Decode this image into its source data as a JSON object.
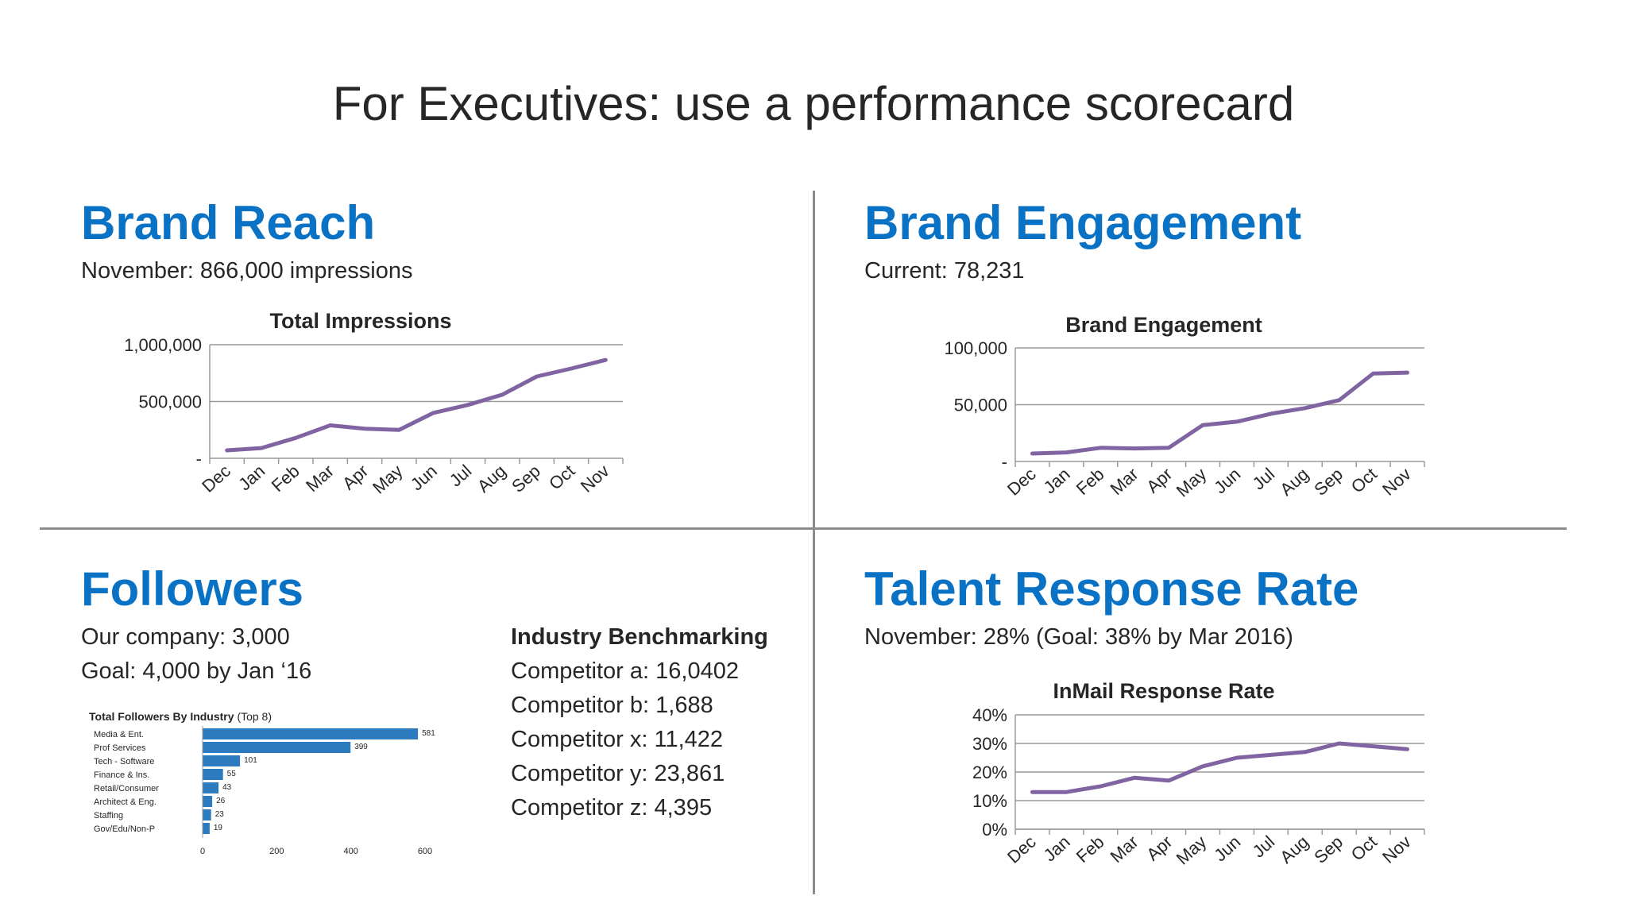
{
  "slide": {
    "title": "For Executives: use a performance scorecard"
  },
  "brand_reach": {
    "heading": "Brand Reach",
    "subtitle": "November: 866,000 impressions"
  },
  "brand_engagement": {
    "heading": "Brand Engagement",
    "subtitle": "Current: 78,231"
  },
  "followers": {
    "heading": "Followers",
    "line1": "Our company: 3,000",
    "line2": "Goal: 4,000 by Jan ‘16",
    "benchmark_title": "Industry Benchmarking",
    "benchmarks": [
      "Competitor a: 16,0402",
      "Competitor b: 1,688",
      "Competitor x: 11,422",
      "Competitor y: 23,861",
      "Competitor z: 4,395"
    ]
  },
  "talent": {
    "heading": "Talent Response Rate",
    "subtitle": "November: 28% (Goal: 38% by Mar 2016)"
  },
  "colors": {
    "accent": "#0a72c4",
    "line": "#8064a2",
    "bar": "#2c7bbf",
    "text": "#262626",
    "grid": "#9a9a9a"
  },
  "chart_data": [
    {
      "type": "line",
      "title": "Total Impressions",
      "categories": [
        "Dec",
        "Jan",
        "Feb",
        "Mar",
        "Apr",
        "May",
        "Jun",
        "Jul",
        "Aug",
        "Sep",
        "Oct",
        "Nov"
      ],
      "series": [
        {
          "values": [
            70000,
            90000,
            180000,
            290000,
            260000,
            250000,
            400000,
            470000,
            560000,
            720000,
            790000,
            866000
          ]
        }
      ],
      "ylim": [
        0,
        1000000
      ],
      "y_ticks": [
        0,
        500000,
        1000000
      ],
      "y_tick_labels": [
        "-",
        "500,000",
        "1,000,000"
      ]
    },
    {
      "type": "line",
      "title": "Brand Engagement",
      "categories": [
        "Dec",
        "Jan",
        "Feb",
        "Mar",
        "Apr",
        "May",
        "Jun",
        "Jul",
        "Aug",
        "Sep",
        "Oct",
        "Nov"
      ],
      "series": [
        {
          "values": [
            7000,
            8000,
            12000,
            11500,
            12000,
            32000,
            35000,
            42000,
            47000,
            54000,
            77500,
            78231
          ]
        }
      ],
      "ylim": [
        0,
        100000
      ],
      "y_ticks": [
        0,
        50000,
        100000
      ],
      "y_tick_labels": [
        "-",
        "50,000",
        "100,000"
      ]
    },
    {
      "type": "bar",
      "orientation": "horizontal",
      "title": "Total Followers By Industry",
      "title_note": "(Top 8)",
      "categories": [
        "Media & Ent.",
        "Prof Services",
        "Tech - Software",
        "Finance & Ins.",
        "Retail/Consumer",
        "Architect & Eng.",
        "Staffing",
        "Gov/Edu/Non-P"
      ],
      "values": [
        581,
        399,
        101,
        55,
        43,
        26,
        23,
        19
      ],
      "value_labels": [
        "581",
        "399",
        "101",
        "55",
        "43",
        "26",
        "23",
        "19"
      ],
      "xlim": [
        0,
        600
      ],
      "x_ticks": [
        0,
        200,
        400,
        600
      ],
      "x_tick_labels": [
        "0",
        "200",
        "400",
        "600"
      ]
    },
    {
      "type": "line",
      "title": "InMail Response Rate",
      "categories": [
        "Dec",
        "Jan",
        "Feb",
        "Mar",
        "Apr",
        "May",
        "Jun",
        "Jul",
        "Aug",
        "Sep",
        "Oct",
        "Nov"
      ],
      "series": [
        {
          "values": [
            13,
            13,
            15,
            18,
            17,
            22,
            25,
            26,
            27,
            30,
            29,
            28
          ]
        }
      ],
      "ylim": [
        0,
        40
      ],
      "y_ticks": [
        0,
        10,
        20,
        30,
        40
      ],
      "y_tick_labels": [
        "0%",
        "10%",
        "20%",
        "30%",
        "40%"
      ],
      "grid": true
    }
  ]
}
